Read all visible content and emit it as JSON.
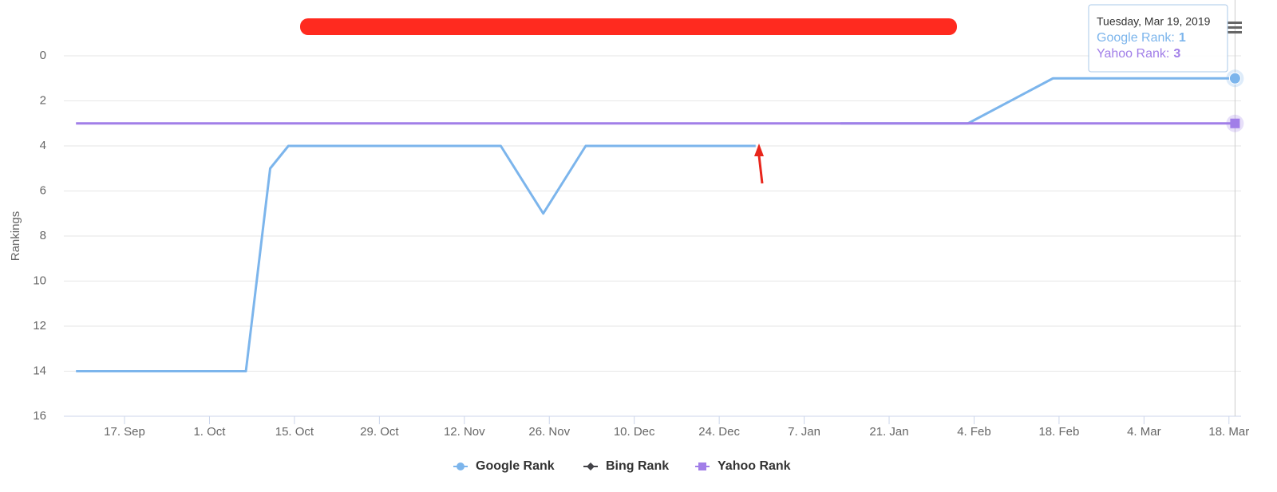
{
  "chart_data": {
    "type": "line",
    "y_label": "Rankings",
    "reversed_y": true,
    "grid": true,
    "ylim": [
      0,
      16
    ],
    "yticks": [
      0,
      2,
      4,
      6,
      8,
      10,
      12,
      14,
      16
    ],
    "xlim": [
      "2018-09-07",
      "2019-03-20"
    ],
    "xticks": [
      {
        "value": "2018-09-17",
        "label": "17. Sep"
      },
      {
        "value": "2018-10-01",
        "label": "1. Oct"
      },
      {
        "value": "2018-10-15",
        "label": "15. Oct"
      },
      {
        "value": "2018-10-29",
        "label": "29. Oct"
      },
      {
        "value": "2018-11-12",
        "label": "12. Nov"
      },
      {
        "value": "2018-11-26",
        "label": "26. Nov"
      },
      {
        "value": "2018-12-10",
        "label": "10. Dec"
      },
      {
        "value": "2018-12-24",
        "label": "24. Dec"
      },
      {
        "value": "2019-01-07",
        "label": "7. Jan"
      },
      {
        "value": "2019-01-21",
        "label": "21. Jan"
      },
      {
        "value": "2019-02-04",
        "label": "4. Feb"
      },
      {
        "value": "2019-02-18",
        "label": "18. Feb"
      },
      {
        "value": "2019-03-04",
        "label": "4. Mar"
      },
      {
        "value": "2019-03-18",
        "label": "18. Mar"
      }
    ],
    "x": [
      "2018-09-09",
      "2018-10-07",
      "2018-10-11",
      "2018-10-14",
      "2018-11-18",
      "2018-11-25",
      "2018-12-02",
      "2018-12-30",
      "2019-01-06",
      "2019-01-13",
      "2019-02-03",
      "2019-02-17",
      "2019-03-19"
    ],
    "series": [
      {
        "name": "Google Rank",
        "color": "#7cb5ec",
        "marker": "circle",
        "values": [
          14,
          14,
          5,
          4,
          4,
          7,
          4,
          4,
          null,
          3,
          3,
          1,
          1
        ]
      },
      {
        "name": "Bing Rank",
        "color": "#434348",
        "marker": "diamond",
        "values": [
          null,
          null,
          null,
          null,
          null,
          null,
          null,
          null,
          null,
          null,
          null,
          null,
          null
        ]
      },
      {
        "name": "Yahoo Rank",
        "color": "#a17ee8",
        "marker": "square",
        "values": [
          3,
          3,
          3,
          3,
          3,
          3,
          3,
          3,
          3,
          3,
          3,
          3,
          3
        ]
      }
    ],
    "tooltip": {
      "header": "Tuesday, Mar 19, 2019",
      "items": [
        {
          "label": "Google Rank:",
          "value": 1
        },
        {
          "label": "Yahoo Rank:",
          "value": 3
        }
      ]
    }
  }
}
